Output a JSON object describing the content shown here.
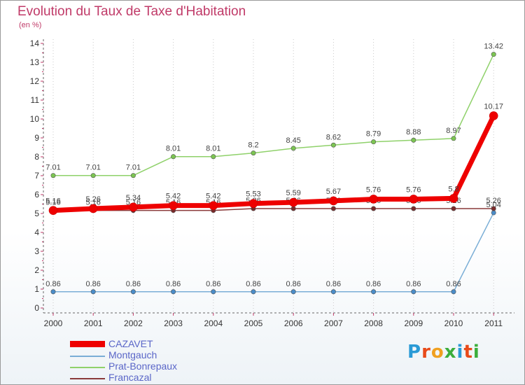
{
  "title": "Evolution du Taux de Taxe d'Habitation",
  "unit_label": "(en %)",
  "logo": {
    "text": "Proxiti",
    "letters": [
      "P",
      "r",
      "o",
      "x",
      "i",
      "t",
      "i"
    ],
    "colors": [
      "#2a9ad6",
      "#e84a1a",
      "#f0a020",
      "#3cae3c",
      "#2a9ad6",
      "#e84a1a",
      "#3cae3c"
    ]
  },
  "chart_data": {
    "type": "line",
    "title": "Evolution du Taux de Taxe d'Habitation",
    "ylabel": "(en %)",
    "xlabel": "",
    "x": [
      "2000",
      "2001",
      "2002",
      "2003",
      "2004",
      "2005",
      "2006",
      "2007",
      "2008",
      "2009",
      "2010",
      "2011"
    ],
    "ylim": [
      0,
      14
    ],
    "yticks": [
      "0",
      "1",
      "2",
      "3",
      "4",
      "5",
      "6",
      "7",
      "8",
      "9",
      "10",
      "11",
      "12",
      "13",
      "14"
    ],
    "grid": "vertical-dotted",
    "legend_position": "bottom-left",
    "series": [
      {
        "name": "Prat-Bonrepaux",
        "color": "#8fd16a",
        "marker": "#7cc552",
        "values": [
          7.01,
          7.01,
          7.01,
          8.01,
          8.01,
          8.2,
          8.45,
          8.62,
          8.79,
          8.88,
          8.97,
          13.42
        ],
        "labels": [
          "7.01",
          "7.01",
          "7.01",
          "8.01",
          "8.01",
          "8.2",
          "8.45",
          "8.62",
          "8.79",
          "8.88",
          "8.97",
          "13.42"
        ]
      },
      {
        "name": "Montgauch",
        "color": "#7aaed6",
        "marker": "#4a8cc8",
        "values": [
          0.86,
          0.86,
          0.86,
          0.86,
          0.86,
          0.86,
          0.86,
          0.86,
          0.86,
          0.86,
          0.86,
          5.04
        ],
        "labels": [
          "0.86",
          "0.86",
          "0.86",
          "0.86",
          "0.86",
          "0.86",
          "0.86",
          "0.86",
          "0.86",
          "0.86",
          "0.86",
          "5.04"
        ]
      },
      {
        "name": "Francazal",
        "color": "#8a3a3a",
        "marker": "#7a2a2a",
        "values": [
          5.16,
          5.16,
          5.16,
          5.16,
          5.16,
          5.26,
          5.26,
          5.26,
          5.26,
          5.26,
          5.26,
          5.26
        ],
        "labels": [
          "5.16",
          "5.16",
          "5.16",
          "5.16",
          "5.16",
          "5.26",
          "5.26",
          "5.26",
          "5.26",
          "5.26",
          "5.26",
          "5.26"
        ]
      },
      {
        "name": "CAZAVET",
        "color": "#ee0000",
        "marker": "#ee0000",
        "values": [
          5.16,
          5.26,
          5.34,
          5.42,
          5.42,
          5.53,
          5.59,
          5.67,
          5.76,
          5.76,
          5.8,
          10.17
        ],
        "labels": [
          "5.16",
          "5.26",
          "5.34",
          "5.42",
          "5.42",
          "5.53",
          "5.59",
          "5.67",
          "5.76",
          "5.76",
          "5.8",
          "10.17"
        ]
      }
    ],
    "legend_order": [
      "CAZAVET",
      "Montgauch",
      "Prat-Bonrepaux",
      "Francazal"
    ]
  }
}
